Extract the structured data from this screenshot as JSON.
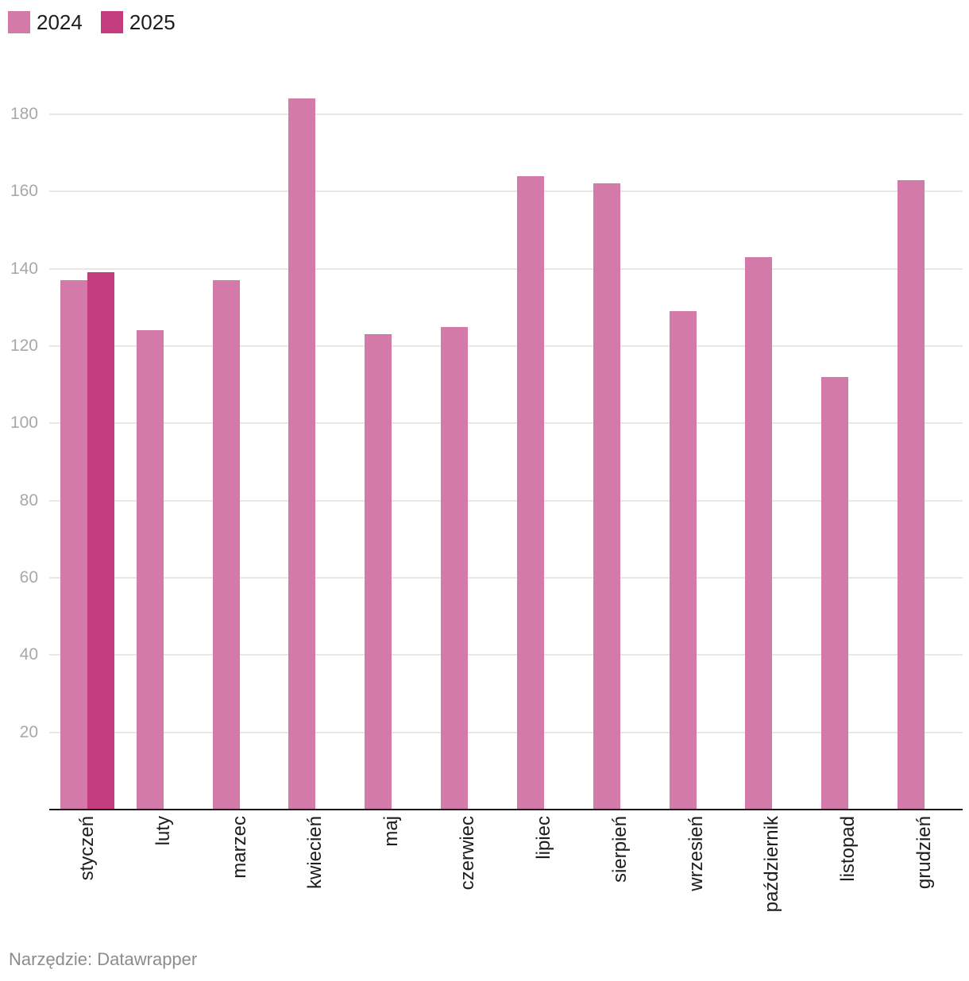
{
  "legend": {
    "items": [
      {
        "label": "2024",
        "color": "#d37aa8"
      },
      {
        "label": "2025",
        "color": "#c33c7e"
      }
    ]
  },
  "chart_data": {
    "type": "bar",
    "categories": [
      "styczeń",
      "luty",
      "marzec",
      "kwiecień",
      "maj",
      "czerwiec",
      "lipiec",
      "sierpień",
      "wrzesień",
      "październik",
      "listopad",
      "grudzień"
    ],
    "series": [
      {
        "name": "2024",
        "color": "#d37aa8",
        "values": [
          137,
          124,
          137,
          184,
          123,
          125,
          164,
          162,
          129,
          143,
          112,
          163
        ]
      },
      {
        "name": "2025",
        "color": "#c33c7e",
        "values": [
          139,
          null,
          null,
          null,
          null,
          null,
          null,
          null,
          null,
          null,
          null,
          null
        ]
      }
    ],
    "title": "",
    "xlabel": "",
    "ylabel": "",
    "ylim": [
      0,
      189
    ],
    "yticks": [
      20,
      40,
      60,
      80,
      100,
      120,
      140,
      160,
      180
    ],
    "grid": true,
    "legend_position": "top-left"
  },
  "footer": {
    "text": "Narzędzie: Datawrapper"
  }
}
